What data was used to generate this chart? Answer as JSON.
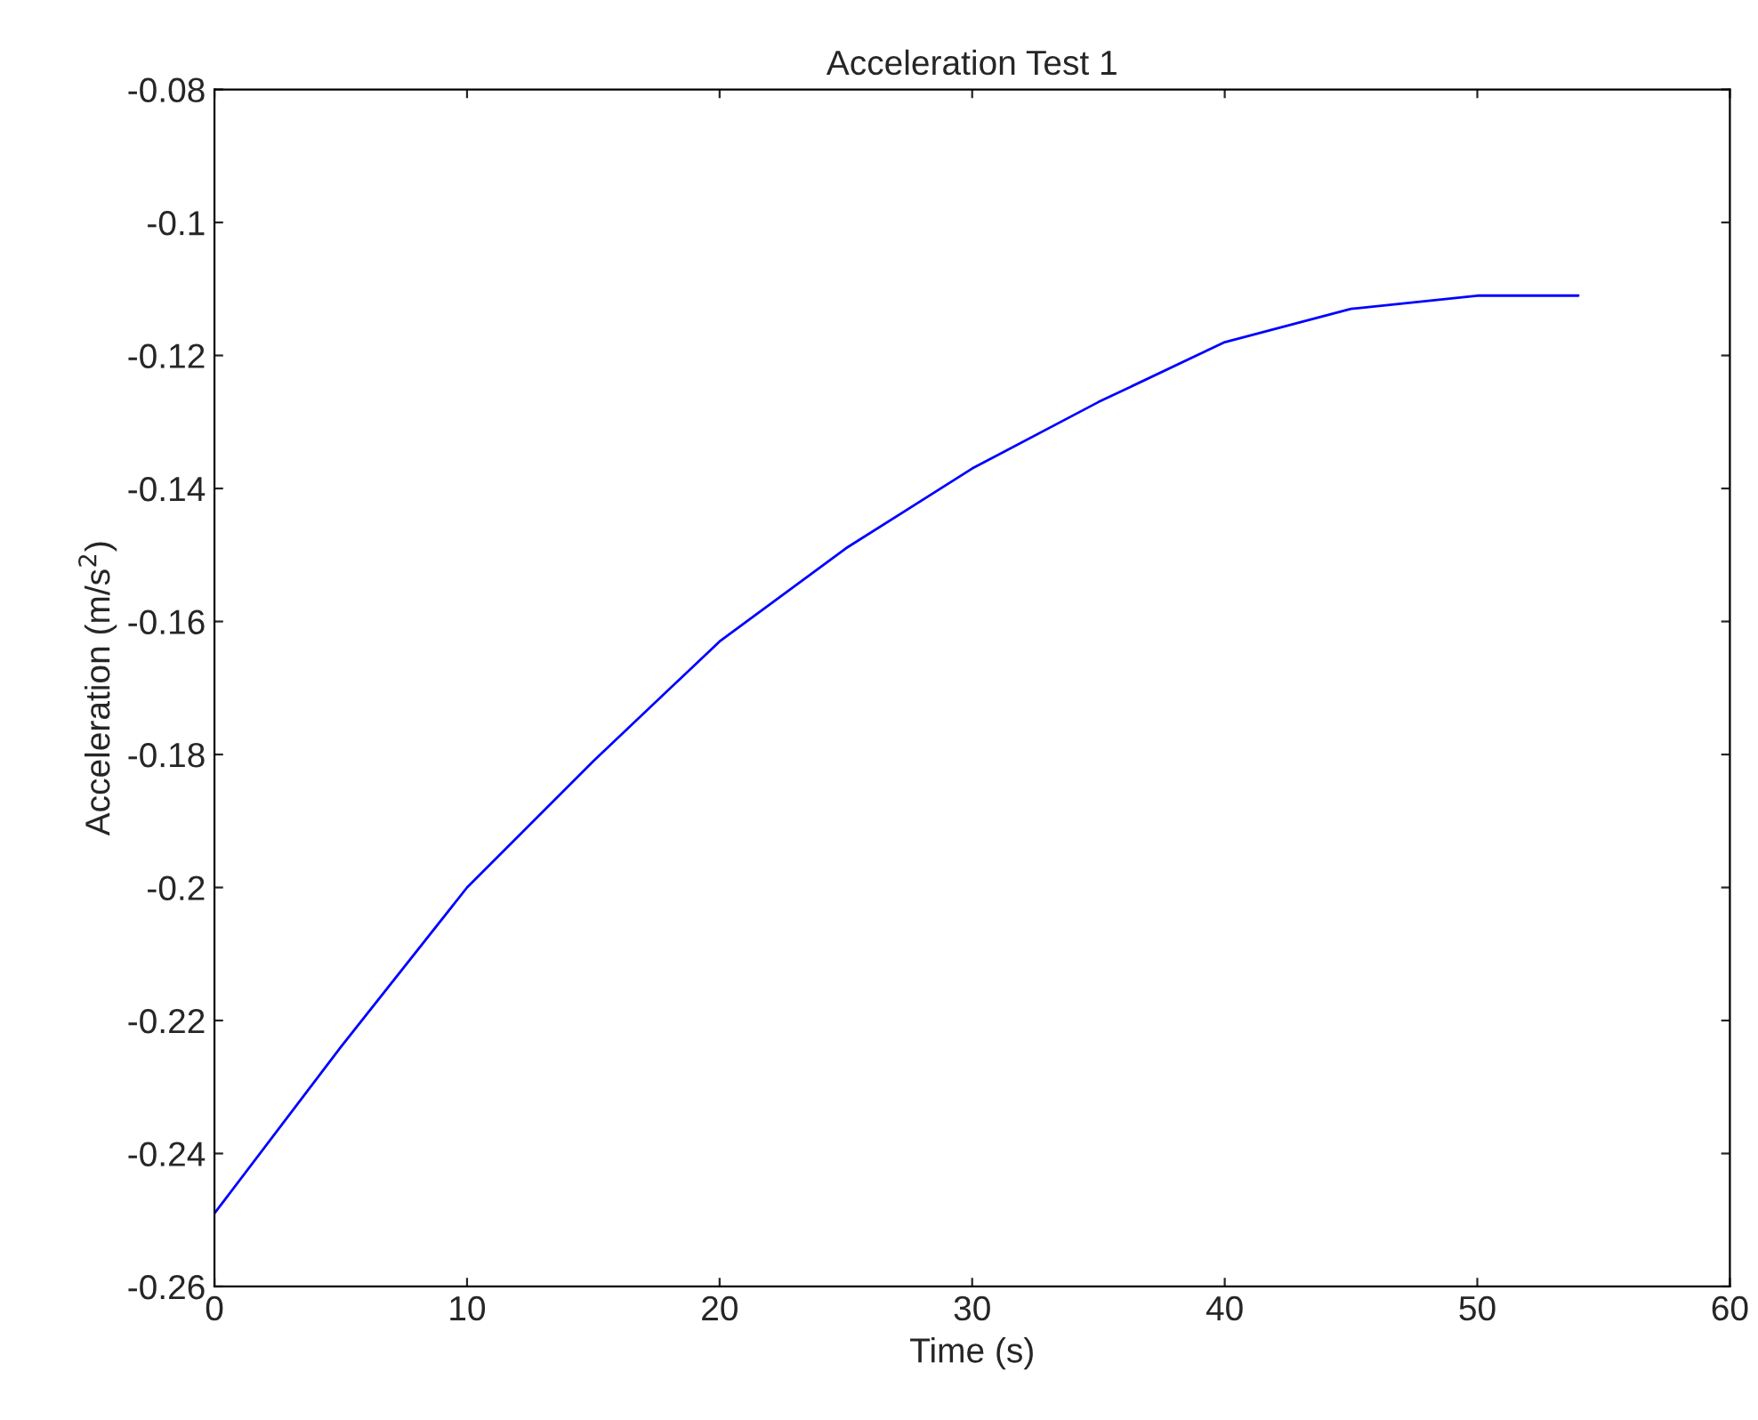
{
  "chart_data": {
    "type": "line",
    "title": "Acceleration Test 1",
    "xlabel": "Time (s)",
    "ylabel": "Acceleration (m/s$^{2}$)",
    "series": [
      {
        "color": "#0000ff",
        "x": [
          0,
          5,
          10,
          15,
          20,
          25,
          30,
          35,
          40,
          45,
          50,
          54
        ],
        "values": [
          -0.249,
          -0.224,
          -0.2,
          -0.181,
          -0.163,
          -0.149,
          -0.137,
          -0.127,
          -0.118,
          -0.113,
          -0.111,
          -0.111
        ]
      }
    ],
    "xlim": [
      0,
      60
    ],
    "xticks": [
      0,
      10,
      20,
      30,
      40,
      50,
      60
    ],
    "ylim": [
      -0.26,
      -0.08
    ],
    "yticks": [
      -0.26,
      -0.24,
      -0.22,
      -0.2,
      -0.18,
      -0.16,
      -0.14,
      -0.12,
      -0.1,
      -0.08
    ],
    "grid": false,
    "legend": false
  }
}
